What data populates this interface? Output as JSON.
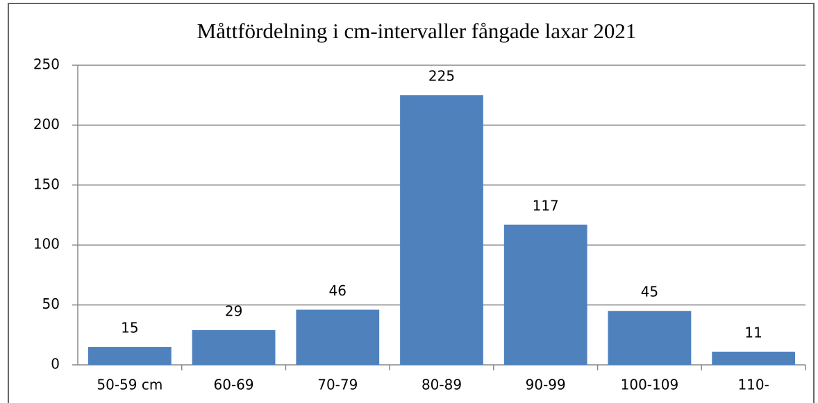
{
  "chart_data": {
    "type": "bar",
    "title": "Måttfördelning i cm-intervaller  fångade laxar 2021",
    "categories": [
      "50-59 cm",
      "60-69",
      "70-79",
      "80-89",
      "90-99",
      "100-109",
      "110-"
    ],
    "values": [
      15,
      29,
      46,
      225,
      117,
      45,
      11
    ],
    "color": "#4f81bd",
    "ylim": [
      0,
      250
    ],
    "yticks": [
      0,
      50,
      100,
      150,
      200,
      250
    ],
    "grid": true
  }
}
